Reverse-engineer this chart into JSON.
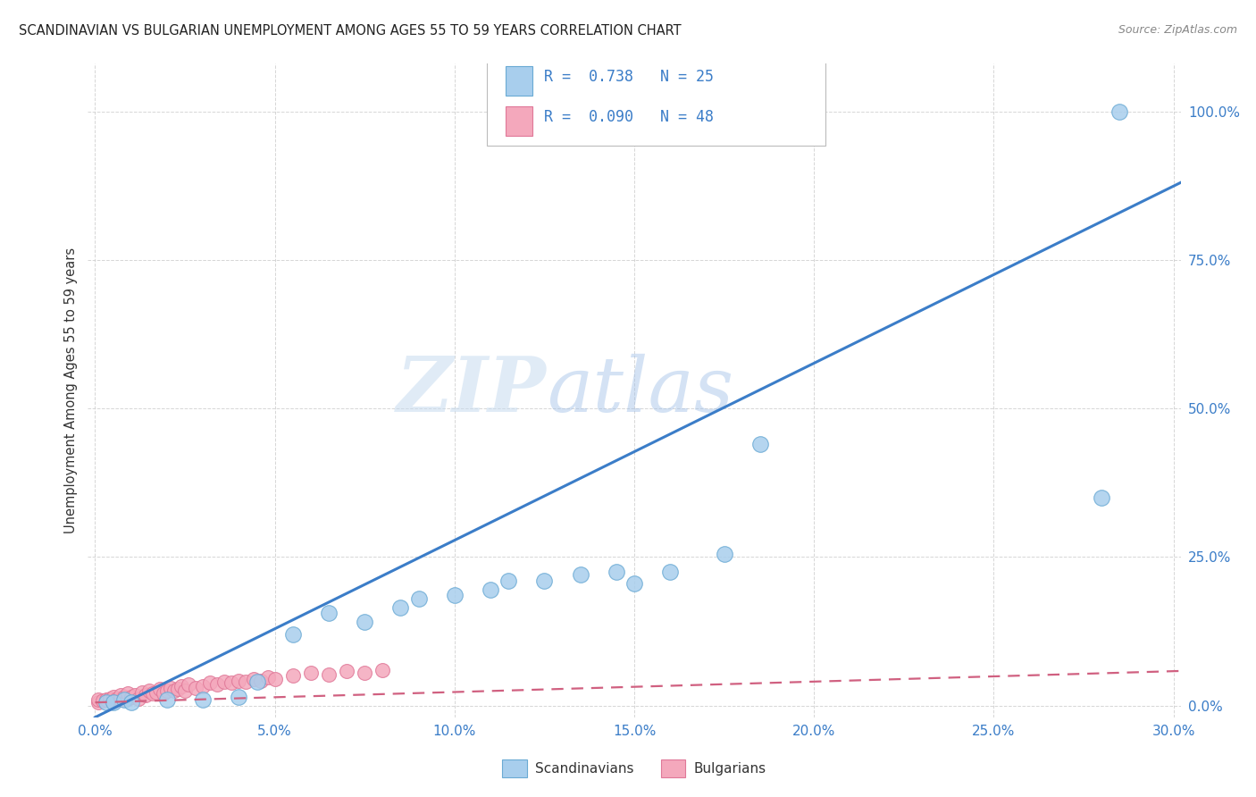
{
  "title": "SCANDINAVIAN VS BULGARIAN UNEMPLOYMENT AMONG AGES 55 TO 59 YEARS CORRELATION CHART",
  "source": "Source: ZipAtlas.com",
  "ylabel": "Unemployment Among Ages 55 to 59 years",
  "xlabel_ticks": [
    "0.0%",
    "5.0%",
    "10.0%",
    "15.0%",
    "20.0%",
    "25.0%",
    "30.0%"
  ],
  "xlabel_vals": [
    0.0,
    0.05,
    0.1,
    0.15,
    0.2,
    0.25,
    0.3
  ],
  "ylabel_ticks": [
    "0.0%",
    "25.0%",
    "50.0%",
    "75.0%",
    "100.0%"
  ],
  "ylabel_vals": [
    0.0,
    0.25,
    0.5,
    0.75,
    1.0
  ],
  "xlim": [
    -0.002,
    0.302
  ],
  "ylim": [
    -0.02,
    1.08
  ],
  "scandinavian_color": "#A8CEED",
  "scandinavian_edge": "#6AAAD4",
  "bulgarian_color": "#F4A8BC",
  "bulgarian_edge": "#E07898",
  "trendline_scand_color": "#3B7DC8",
  "trendline_bulg_color": "#D06080",
  "legend_R_scand": "R =  0.738",
  "legend_N_scand": "N = 25",
  "legend_R_bulg": "R =  0.090",
  "legend_N_bulg": "N = 48",
  "watermark_zip": "ZIP",
  "watermark_atlas": "atlas",
  "scand_trendline_x0": 0.0,
  "scand_trendline_y0": -0.02,
  "scand_trendline_x1": 0.302,
  "scand_trendline_y1": 0.88,
  "bulg_trendline_x0": 0.0,
  "bulg_trendline_y0": 0.005,
  "bulg_trendline_x1": 0.302,
  "bulg_trendline_y1": 0.058,
  "scandinavians_x": [
    0.003,
    0.005,
    0.008,
    0.01,
    0.02,
    0.03,
    0.04,
    0.045,
    0.055,
    0.065,
    0.075,
    0.085,
    0.09,
    0.1,
    0.11,
    0.115,
    0.125,
    0.135,
    0.145,
    0.15,
    0.16,
    0.175,
    0.185,
    0.28,
    0.285
  ],
  "scandinavians_y": [
    0.005,
    0.005,
    0.01,
    0.005,
    0.01,
    0.01,
    0.015,
    0.04,
    0.12,
    0.155,
    0.14,
    0.165,
    0.18,
    0.185,
    0.195,
    0.21,
    0.21,
    0.22,
    0.225,
    0.205,
    0.225,
    0.255,
    0.44,
    0.35,
    1.0
  ],
  "bulgarians_x": [
    0.001,
    0.001,
    0.002,
    0.003,
    0.004,
    0.005,
    0.005,
    0.006,
    0.007,
    0.007,
    0.008,
    0.009,
    0.009,
    0.01,
    0.011,
    0.012,
    0.013,
    0.014,
    0.015,
    0.016,
    0.017,
    0.018,
    0.019,
    0.02,
    0.021,
    0.022,
    0.023,
    0.024,
    0.025,
    0.026,
    0.028,
    0.03,
    0.032,
    0.034,
    0.036,
    0.038,
    0.04,
    0.042,
    0.044,
    0.046,
    0.048,
    0.05,
    0.055,
    0.06,
    0.065,
    0.07,
    0.075,
    0.08
  ],
  "bulgarians_y": [
    0.005,
    0.01,
    0.008,
    0.01,
    0.012,
    0.008,
    0.015,
    0.012,
    0.01,
    0.018,
    0.015,
    0.012,
    0.02,
    0.015,
    0.018,
    0.012,
    0.022,
    0.018,
    0.025,
    0.02,
    0.022,
    0.028,
    0.02,
    0.025,
    0.03,
    0.025,
    0.028,
    0.032,
    0.025,
    0.035,
    0.03,
    0.032,
    0.038,
    0.035,
    0.04,
    0.038,
    0.042,
    0.04,
    0.045,
    0.042,
    0.048,
    0.045,
    0.05,
    0.055,
    0.052,
    0.058,
    0.055,
    0.06
  ]
}
